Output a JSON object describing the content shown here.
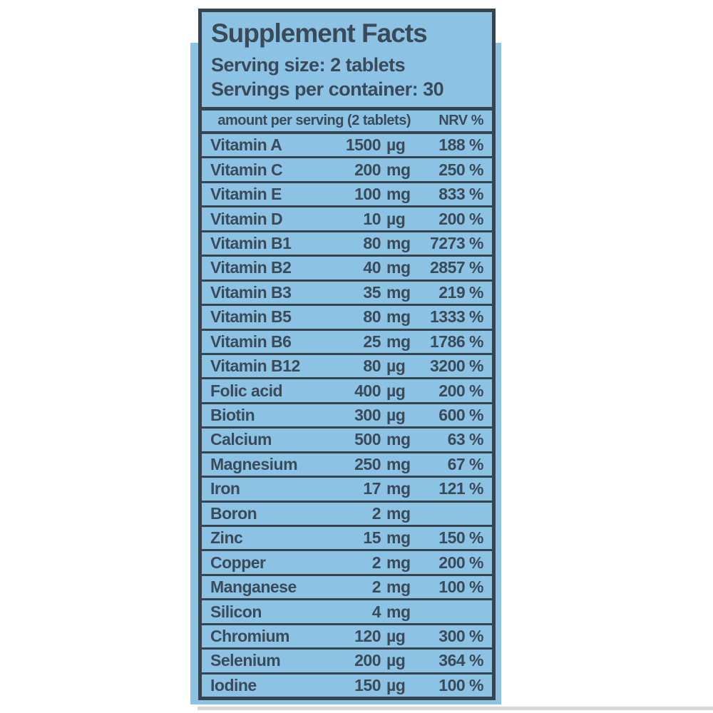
{
  "label": {
    "title": "Supplement Facts",
    "serving_size": "Serving size: 2 tablets",
    "servings_per_container": "Servings per container: 30",
    "columns": {
      "amount": "amount per serving (2 tablets)",
      "nrv": "NRV %"
    }
  },
  "table": {
    "rows": [
      {
        "name": "Vitamin A",
        "amount": "1500",
        "unit": "µg",
        "nrv": "188 %"
      },
      {
        "name": "Vitamin C",
        "amount": "200",
        "unit": "mg",
        "nrv": "250 %"
      },
      {
        "name": "Vitamin E",
        "amount": "100",
        "unit": "mg",
        "nrv": "833 %"
      },
      {
        "name": "Vitamin D",
        "amount": "10",
        "unit": "µg",
        "nrv": "200 %"
      },
      {
        "name": "Vitamin B1",
        "amount": "80",
        "unit": "mg",
        "nrv": "7273 %"
      },
      {
        "name": "Vitamin B2",
        "amount": "40",
        "unit": "mg",
        "nrv": "2857 %"
      },
      {
        "name": "Vitamin B3",
        "amount": "35",
        "unit": "mg",
        "nrv": "219 %"
      },
      {
        "name": "Vitamin B5",
        "amount": "80",
        "unit": "mg",
        "nrv": "1333 %"
      },
      {
        "name": "Vitamin B6",
        "amount": "25",
        "unit": "mg",
        "nrv": "1786 %"
      },
      {
        "name": "Vitamin B12",
        "amount": "80",
        "unit": "µg",
        "nrv": "3200 %"
      },
      {
        "name": "Folic acid",
        "amount": "400",
        "unit": "µg",
        "nrv": "200 %"
      },
      {
        "name": "Biotin",
        "amount": "300",
        "unit": "µg",
        "nrv": "600 %"
      },
      {
        "name": "Calcium",
        "amount": "500",
        "unit": "mg",
        "nrv": "63 %"
      },
      {
        "name": "Magnesium",
        "amount": "250",
        "unit": "mg",
        "nrv": "67 %"
      },
      {
        "name": "Iron",
        "amount": "17",
        "unit": "mg",
        "nrv": "121 %"
      },
      {
        "name": "Boron",
        "amount": "2",
        "unit": "mg",
        "nrv": ""
      },
      {
        "name": "Zinc",
        "amount": "15",
        "unit": "mg",
        "nrv": "150 %"
      },
      {
        "name": "Copper",
        "amount": "2",
        "unit": "mg",
        "nrv": "200 %"
      },
      {
        "name": "Manganese",
        "amount": "2",
        "unit": "mg",
        "nrv": "100 %"
      },
      {
        "name": "Silicon",
        "amount": "4",
        "unit": "mg",
        "nrv": ""
      },
      {
        "name": "Chromium",
        "amount": "120",
        "unit": "µg",
        "nrv": "300 %"
      },
      {
        "name": "Selenium",
        "amount": "200",
        "unit": "µg",
        "nrv": "364 %"
      },
      {
        "name": "Iodine",
        "amount": "150",
        "unit": "µg",
        "nrv": "100 %"
      }
    ]
  },
  "colors": {
    "panel_blue": "#8cc3e5",
    "ink": "#3a4a58",
    "border_dark": "#36444f",
    "divider_gray": "#d6d9db",
    "page_bg": "#ffffff"
  }
}
